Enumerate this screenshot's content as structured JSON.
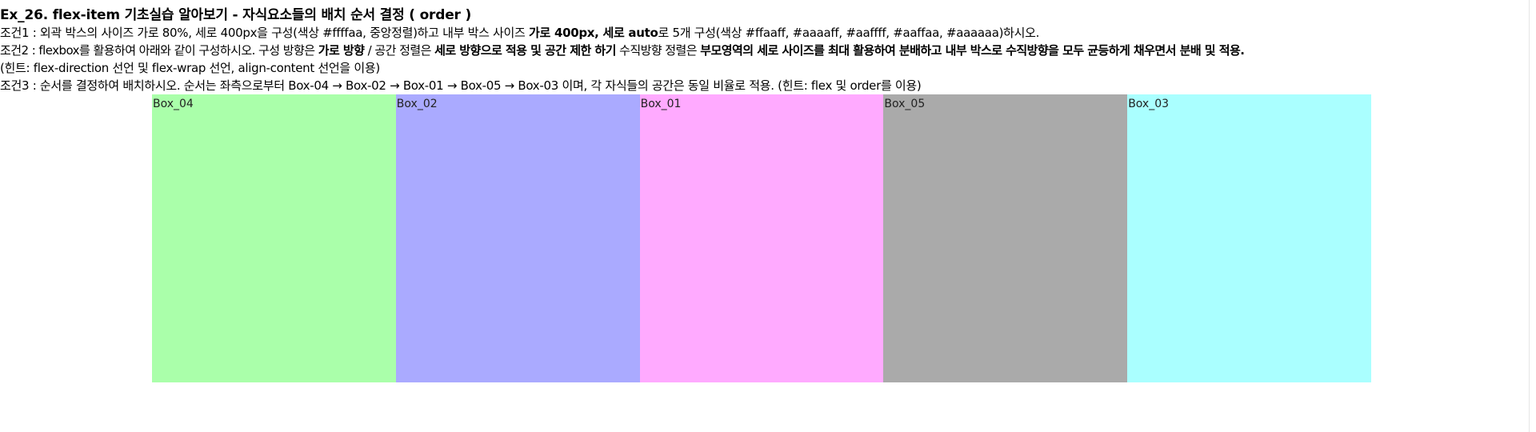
{
  "title": "Ex_26. flex-item 기초실습 알아보기 - 자식요소들의 배치 순서 결정 ( order )",
  "conditions": {
    "c1": {
      "part1": "조건1 : 외곽 박스의 사이즈 가로 80%, 세로 400px을 구성(색상 #ffffaa, 중앙정렬)하고 내부 박스 사이즈 ",
      "bold1": "가로 400px, 세로 auto",
      "part2": "로 5개 구성(색상 #ffaaff, #aaaaff, #aaffff, #aaffaa, #aaaaaa)하시오."
    },
    "c2": {
      "part1": "조건2 : flexbox를 활용하여 아래와 같이 구성하시오. 구성 방향은 ",
      "bold1": "가로 방향",
      "part2": " / 공간 정렬은 ",
      "bold2": "세로 방향으로 적용 및 공간 제한 하기",
      "part3": " 수직방향 정렬은 ",
      "bold3": "부모영역의 세로 사이즈를 최대 활용하여 분배하고 내부 박스로 수직방향을 모두 균등하게 채우면서 분배 및 적용.",
      "hint": "(힌트: flex-direction 선언 및 flex-wrap 선언, align-content 선언을 이용)"
    },
    "c3": "조건3 : 순서를 결정하여 배치하시오. 순서는 좌측으로부터 Box-04 → Box-02 → Box-01 → Box-05 → Box-03 이며, 각 자식들의 공간은 동일 비율로 적용. (힌트: flex 및 order를 이용)"
  },
  "boxes": [
    {
      "label": "Box_04",
      "color": "#aaffaa"
    },
    {
      "label": "Box_02",
      "color": "#aaaaff"
    },
    {
      "label": "Box_01",
      "color": "#ffaaff"
    },
    {
      "label": "Box_05",
      "color": "#aaaaaa"
    },
    {
      "label": "Box_03",
      "color": "#aaffff"
    }
  ]
}
